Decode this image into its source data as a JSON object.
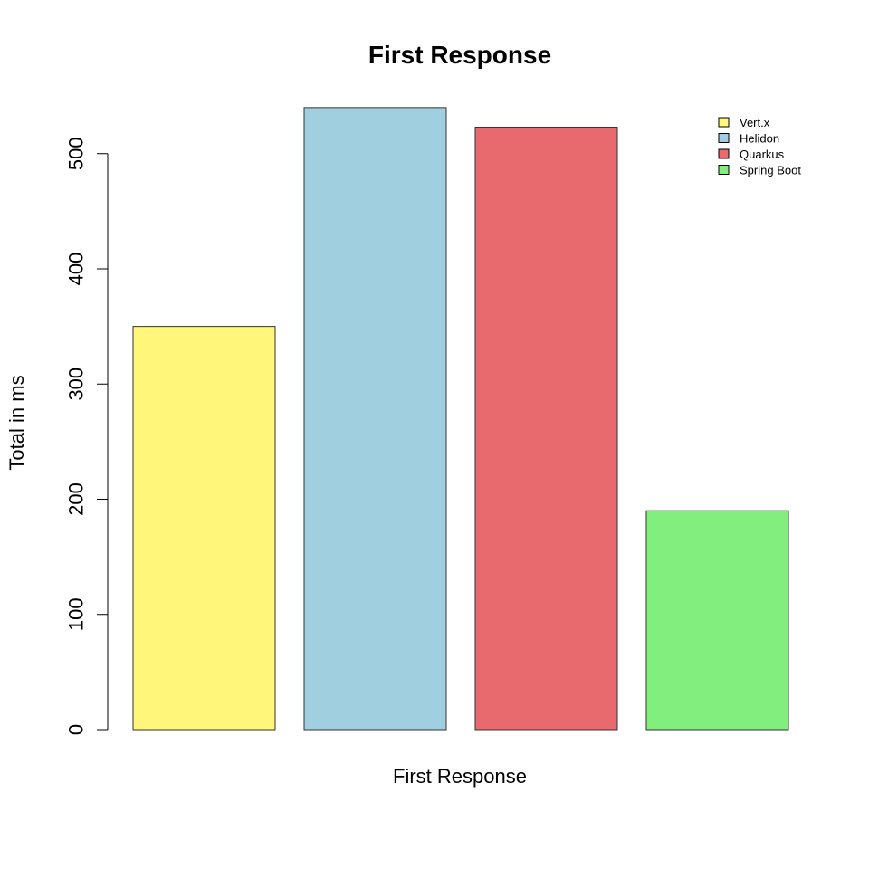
{
  "chart_data": {
    "type": "bar",
    "title": "First Response",
    "xlabel": "First Response",
    "ylabel": "Total in ms",
    "categories": [
      "Vert.x",
      "Helidon",
      "Quarkus",
      "Spring Boot"
    ],
    "values": [
      350,
      540,
      523,
      190
    ],
    "colors": [
      "#FFF67A",
      "#A0CFE0",
      "#E96A6E",
      "#81EE7E"
    ],
    "ylim": [
      0,
      540
    ],
    "yticks": [
      0,
      100,
      200,
      300,
      400,
      500
    ],
    "legend": {
      "position": "top-right",
      "entries": [
        "Vert.x",
        "Helidon",
        "Quarkus",
        "Spring Boot"
      ]
    },
    "grid": false
  }
}
